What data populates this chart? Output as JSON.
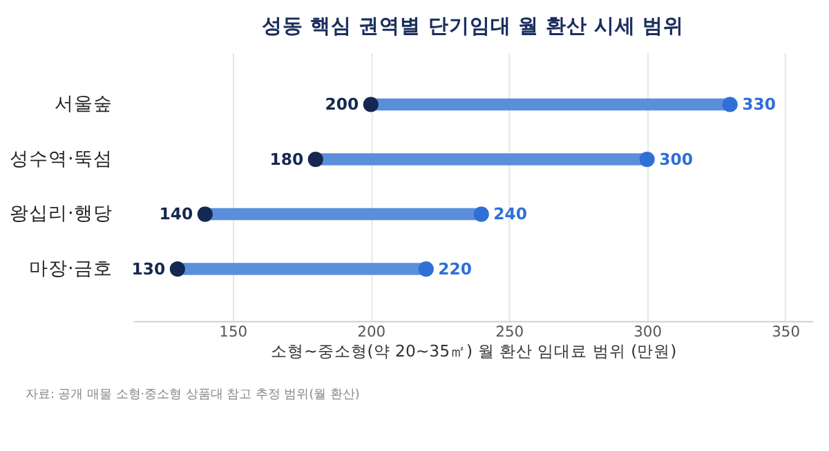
{
  "chart_data": {
    "type": "bar",
    "orientation": "horizontal",
    "title": "성동 핵심 권역별 단기임대 월 환산 시세 범위",
    "xlabel": "소형~중소형(약 20~35㎡) 월 환산 임대료 범위 (만원)",
    "categories": [
      "서울숲",
      "성수역·뚝섬",
      "왕십리·행당",
      "마장·금호"
    ],
    "series": [
      {
        "color": "#5b8fdc",
        "base": [
          200,
          180,
          140,
          130
        ],
        "values": [
          130,
          120,
          100,
          90
        ]
      },
      {
        "type": "scatter",
        "color": "#142850",
        "values": [
          200,
          180,
          140,
          130
        ],
        "data_labels": true
      },
      {
        "type": "scatter",
        "color": "#2f6fd6",
        "values": [
          330,
          300,
          240,
          220
        ],
        "data_labels": true
      }
    ],
    "xlim": [
      114,
      360
    ],
    "xticks": [
      150,
      200,
      250,
      300,
      350
    ],
    "grid": "x",
    "marker": "circle",
    "annotations": [
      "자료: 공개 매물 소형·중소형 상품대 참고 추정 범위(월 환산)"
    ]
  }
}
